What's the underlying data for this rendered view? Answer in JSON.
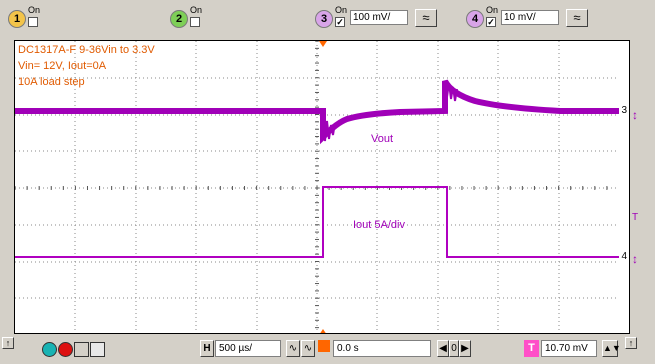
{
  "channels": [
    {
      "num": "1",
      "on_label": "On",
      "checked": false,
      "color": "#f3c44a"
    },
    {
      "num": "2",
      "on_label": "On",
      "checked": false,
      "color": "#7ecf57"
    },
    {
      "num": "3",
      "on_label": "On",
      "checked": true,
      "scale": "100 mV/",
      "color": "#d8a4e8"
    },
    {
      "num": "4",
      "on_label": "On",
      "checked": true,
      "scale": "10 mV/",
      "color": "#d8a4e8"
    }
  ],
  "coupling_glyph": "≈",
  "check_glyph": "✓",
  "annotations": {
    "line1": "DC1317A-F 9-36Vin to 3.3V",
    "line2": "Vin= 12V, Iout=0A",
    "line3": "10A load step",
    "vout": "Vout",
    "iout": "Iout 5A/div"
  },
  "markers": {
    "ch3": "3",
    "ch4": "4",
    "trigger": "T"
  },
  "bottom": {
    "timebase_label": "H",
    "timebase": "500 µs/",
    "delay": "0.0 s",
    "trigger_label": "T",
    "trigger_level": "10.70 mV",
    "arrow": "↑"
  },
  "colors": {
    "trace": "#a000b8",
    "annotation": "#e05a00",
    "grid": "#888888",
    "trigger_marker": "#ff6600"
  }
}
